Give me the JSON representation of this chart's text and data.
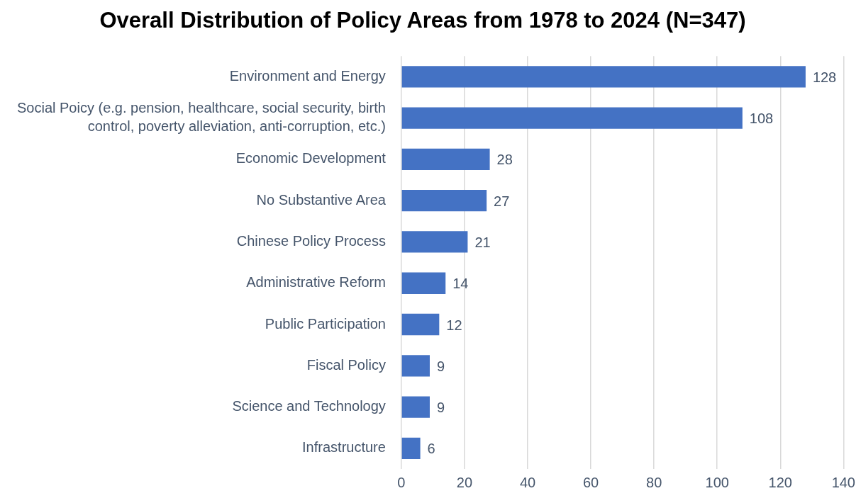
{
  "chart_data": {
    "type": "bar",
    "orientation": "horizontal",
    "title": "Overall Distribution of Policy Areas from 1978 to 2024 (N=347)",
    "categories": [
      "Environment and Energy",
      "Social Poicy (e.g. pension, healthcare, social security, birth control, poverty alleviation, anti-corruption, etc.)",
      "Economic Development",
      "No Substantive Area",
      "Chinese Policy Process",
      "Administrative Reform",
      "Public Participation",
      "Fiscal Policy",
      "Science and Technology",
      "Infrastructure"
    ],
    "values": [
      128,
      108,
      28,
      27,
      21,
      14,
      12,
      9,
      9,
      6
    ],
    "color": "#4472c4",
    "xlim": [
      0,
      140
    ],
    "xticks": [
      0,
      20,
      40,
      60,
      80,
      100,
      120,
      140
    ],
    "grid": "x",
    "data_labels": true,
    "legend": false
  }
}
